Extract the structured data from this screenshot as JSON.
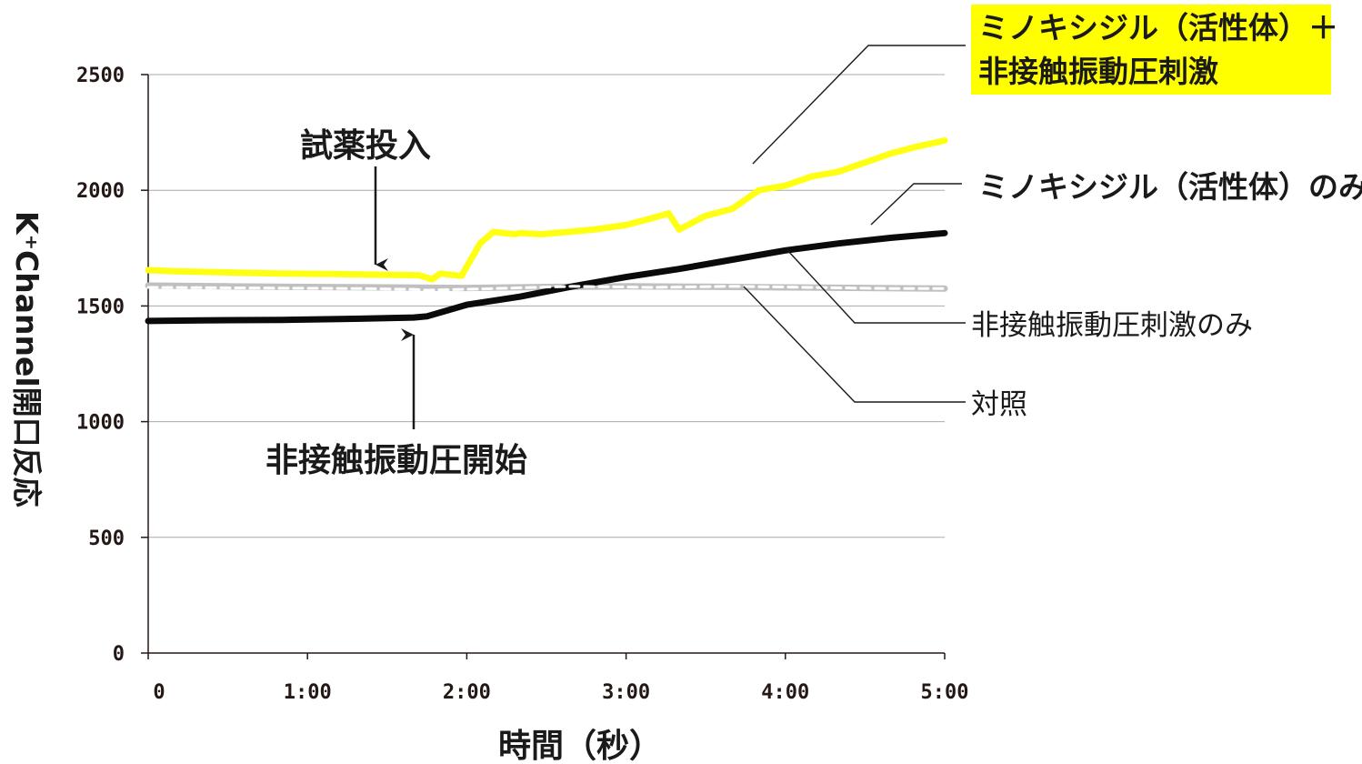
{
  "chart_data": {
    "type": "line",
    "xlabel": "時間（秒）",
    "ylabel": "K⁺Channel開口反応",
    "x_ticks": [
      "0",
      "1:00",
      "2:00",
      "3:00",
      "4:00",
      "5:00"
    ],
    "y_ticks": [
      "0",
      "500",
      "1000",
      "1500",
      "2000",
      "2500"
    ],
    "xlim": [
      0,
      300
    ],
    "ylim": [
      0,
      2500
    ],
    "grid": "horizontal",
    "series": [
      {
        "name_lines": [
          "ミノキシジル（活性体）＋",
          "非接触振動圧刺激"
        ],
        "highlight": "#ffff00",
        "color": "#ffff14",
        "x": [
          0,
          10,
          30,
          50,
          70,
          90,
          102,
          107,
          110,
          118,
          125,
          130,
          138,
          140,
          148,
          158,
          168,
          180,
          190,
          196,
          200,
          210,
          220,
          225,
          230,
          240,
          250,
          260,
          270,
          280,
          290,
          300
        ],
        "y": [
          1655,
          1650,
          1645,
          1640,
          1638,
          1635,
          1633,
          1615,
          1640,
          1630,
          1770,
          1820,
          1810,
          1815,
          1810,
          1820,
          1830,
          1850,
          1880,
          1900,
          1830,
          1890,
          1920,
          1960,
          2000,
          2020,
          2060,
          2080,
          2120,
          2160,
          2190,
          2215
        ]
      },
      {
        "name": "ミノキシジル（活性体）のみ",
        "color": "#0a0a0a",
        "x": [
          0,
          20,
          50,
          80,
          100,
          105,
          120,
          140,
          160,
          180,
          200,
          220,
          240,
          260,
          280,
          300
        ],
        "y": [
          1435,
          1438,
          1440,
          1445,
          1450,
          1455,
          1505,
          1540,
          1585,
          1625,
          1660,
          1700,
          1740,
          1770,
          1795,
          1815
        ]
      },
      {
        "name": "非接触振動圧刺激のみ",
        "color": "#0a0a0a",
        "dashed": true,
        "x": [
          0,
          40,
          80,
          100,
          105,
          130,
          160,
          190,
          220,
          250,
          280,
          300
        ],
        "y": [
          1580,
          1578,
          1575,
          1572,
          1568,
          1575,
          1585,
          1580,
          1585,
          1580,
          1575,
          1575
        ]
      },
      {
        "name": "対照",
        "color": "#c0c0c0",
        "x": [
          0,
          30,
          60,
          90,
          120,
          150,
          180,
          210,
          240,
          270,
          300
        ],
        "y": [
          1588,
          1585,
          1582,
          1580,
          1578,
          1582,
          1585,
          1583,
          1580,
          1578,
          1575
        ]
      }
    ],
    "annotations": [
      {
        "text": "試薬投入",
        "arrow": "down",
        "x": 87,
        "y": 1640
      },
      {
        "text": "非接触振動圧開始",
        "arrow": "up",
        "x": 101,
        "y": 1420
      }
    ]
  }
}
